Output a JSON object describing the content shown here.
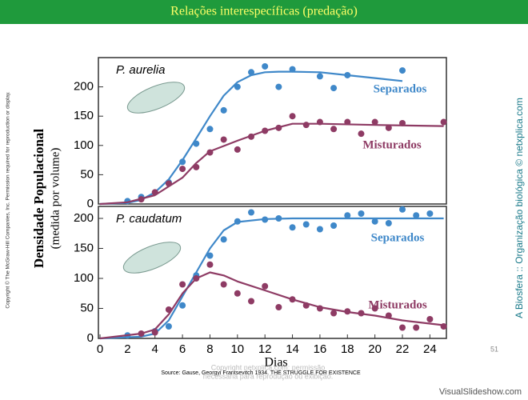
{
  "slide": {
    "title": "Relações interespecíficas (predação)",
    "ylabel": "Densidade Populacional",
    "ylabel_sub": "(medida por volume)",
    "xlabel": "Dias",
    "left_note": "Copyright © The McGraw-Hill Companies, Inc. Permission required for reproduction or display.",
    "right_note": "A Biosfera :: Organização biológica © netxplica.com",
    "source": "Source: Gause, Georgyi Frantsevitch 1934. THE STRUGGLE FOR EXISTENCE",
    "watermark1": "Copyright netxplica.com: permissão",
    "watermark2": "necessária para reprodução ou exibição.",
    "page": "51",
    "brand": "VisualSlideshow.com"
  },
  "chart_data": [
    {
      "type": "scatter",
      "title": "P. aurelia",
      "xlim": [
        0,
        25.2
      ],
      "ylim": [
        0,
        250
      ],
      "yticks": [
        0,
        50,
        100,
        150,
        200
      ],
      "series": [
        {
          "name": "Separados",
          "color": "#3f88c9",
          "x": [
            2,
            3,
            5,
            6,
            7,
            8,
            9,
            10,
            11,
            12,
            13,
            14,
            16,
            17,
            18,
            22
          ],
          "values": [
            5,
            12,
            37,
            72,
            103,
            128,
            160,
            200,
            225,
            235,
            200,
            230,
            218,
            198,
            220,
            228
          ],
          "fit_x": [
            0,
            2,
            3,
            4,
            5,
            6,
            7,
            8,
            9,
            10,
            11,
            12,
            13,
            14,
            16,
            18,
            20,
            22
          ],
          "fit_values": [
            0,
            2,
            7,
            20,
            42,
            75,
            112,
            150,
            185,
            208,
            220,
            225,
            226,
            226,
            225,
            220,
            215,
            210
          ]
        },
        {
          "name": "Misturados",
          "color": "#8e3b64",
          "x": [
            3,
            4,
            5,
            6,
            7,
            8,
            9,
            10,
            11,
            12,
            13,
            14,
            15,
            16,
            17,
            18,
            19,
            20,
            21,
            22,
            25
          ],
          "values": [
            8,
            20,
            35,
            60,
            63,
            88,
            110,
            93,
            115,
            125,
            130,
            150,
            135,
            140,
            128,
            140,
            120,
            140,
            130,
            138,
            140
          ],
          "fit_x": [
            0,
            2,
            4,
            6,
            7,
            8,
            10,
            12,
            14,
            16,
            20,
            25
          ],
          "fit_values": [
            0,
            3,
            15,
            45,
            70,
            90,
            108,
            125,
            137,
            137,
            135,
            133
          ]
        }
      ]
    },
    {
      "type": "scatter",
      "title": "P. caudatum",
      "xlim": [
        0,
        25.2
      ],
      "ylim": [
        0,
        220
      ],
      "yticks": [
        0,
        50,
        100,
        150,
        200
      ],
      "xticks": [
        0,
        2,
        4,
        6,
        8,
        10,
        12,
        14,
        16,
        18,
        20,
        22,
        24
      ],
      "series": [
        {
          "name": "Separados",
          "color": "#3f88c9",
          "x": [
            2,
            4,
            5,
            6,
            7,
            8,
            9,
            10,
            11,
            12,
            13,
            14,
            15,
            16,
            17,
            18,
            19,
            20,
            21,
            22,
            23,
            24
          ],
          "values": [
            5,
            12,
            20,
            55,
            105,
            138,
            165,
            195,
            210,
            198,
            200,
            185,
            190,
            182,
            188,
            205,
            208,
            195,
            192,
            215,
            205,
            208
          ],
          "fit_x": [
            0,
            3,
            4,
            5,
            6,
            7,
            8,
            9,
            10,
            12,
            14,
            18,
            25
          ],
          "fit_values": [
            0,
            3,
            8,
            30,
            70,
            110,
            150,
            180,
            194,
            199,
            200,
            200,
            200
          ]
        },
        {
          "name": "Misturados",
          "color": "#8e3b64",
          "x": [
            3,
            4,
            5,
            6,
            7,
            8,
            9,
            10,
            11,
            12,
            13,
            14,
            15,
            16,
            17,
            18,
            19,
            20,
            21,
            22,
            23,
            24,
            25
          ],
          "values": [
            8,
            10,
            48,
            90,
            100,
            123,
            90,
            75,
            62,
            87,
            52,
            65,
            55,
            50,
            42,
            45,
            42,
            50,
            38,
            18,
            18,
            32,
            20
          ],
          "fit_x": [
            0,
            3,
            4,
            5,
            6,
            7,
            8,
            9,
            10,
            12,
            14,
            16,
            18,
            20,
            22,
            25
          ],
          "fit_values": [
            0,
            8,
            15,
            40,
            75,
            100,
            110,
            105,
            95,
            80,
            65,
            52,
            44,
            38,
            30,
            22
          ]
        }
      ]
    }
  ]
}
